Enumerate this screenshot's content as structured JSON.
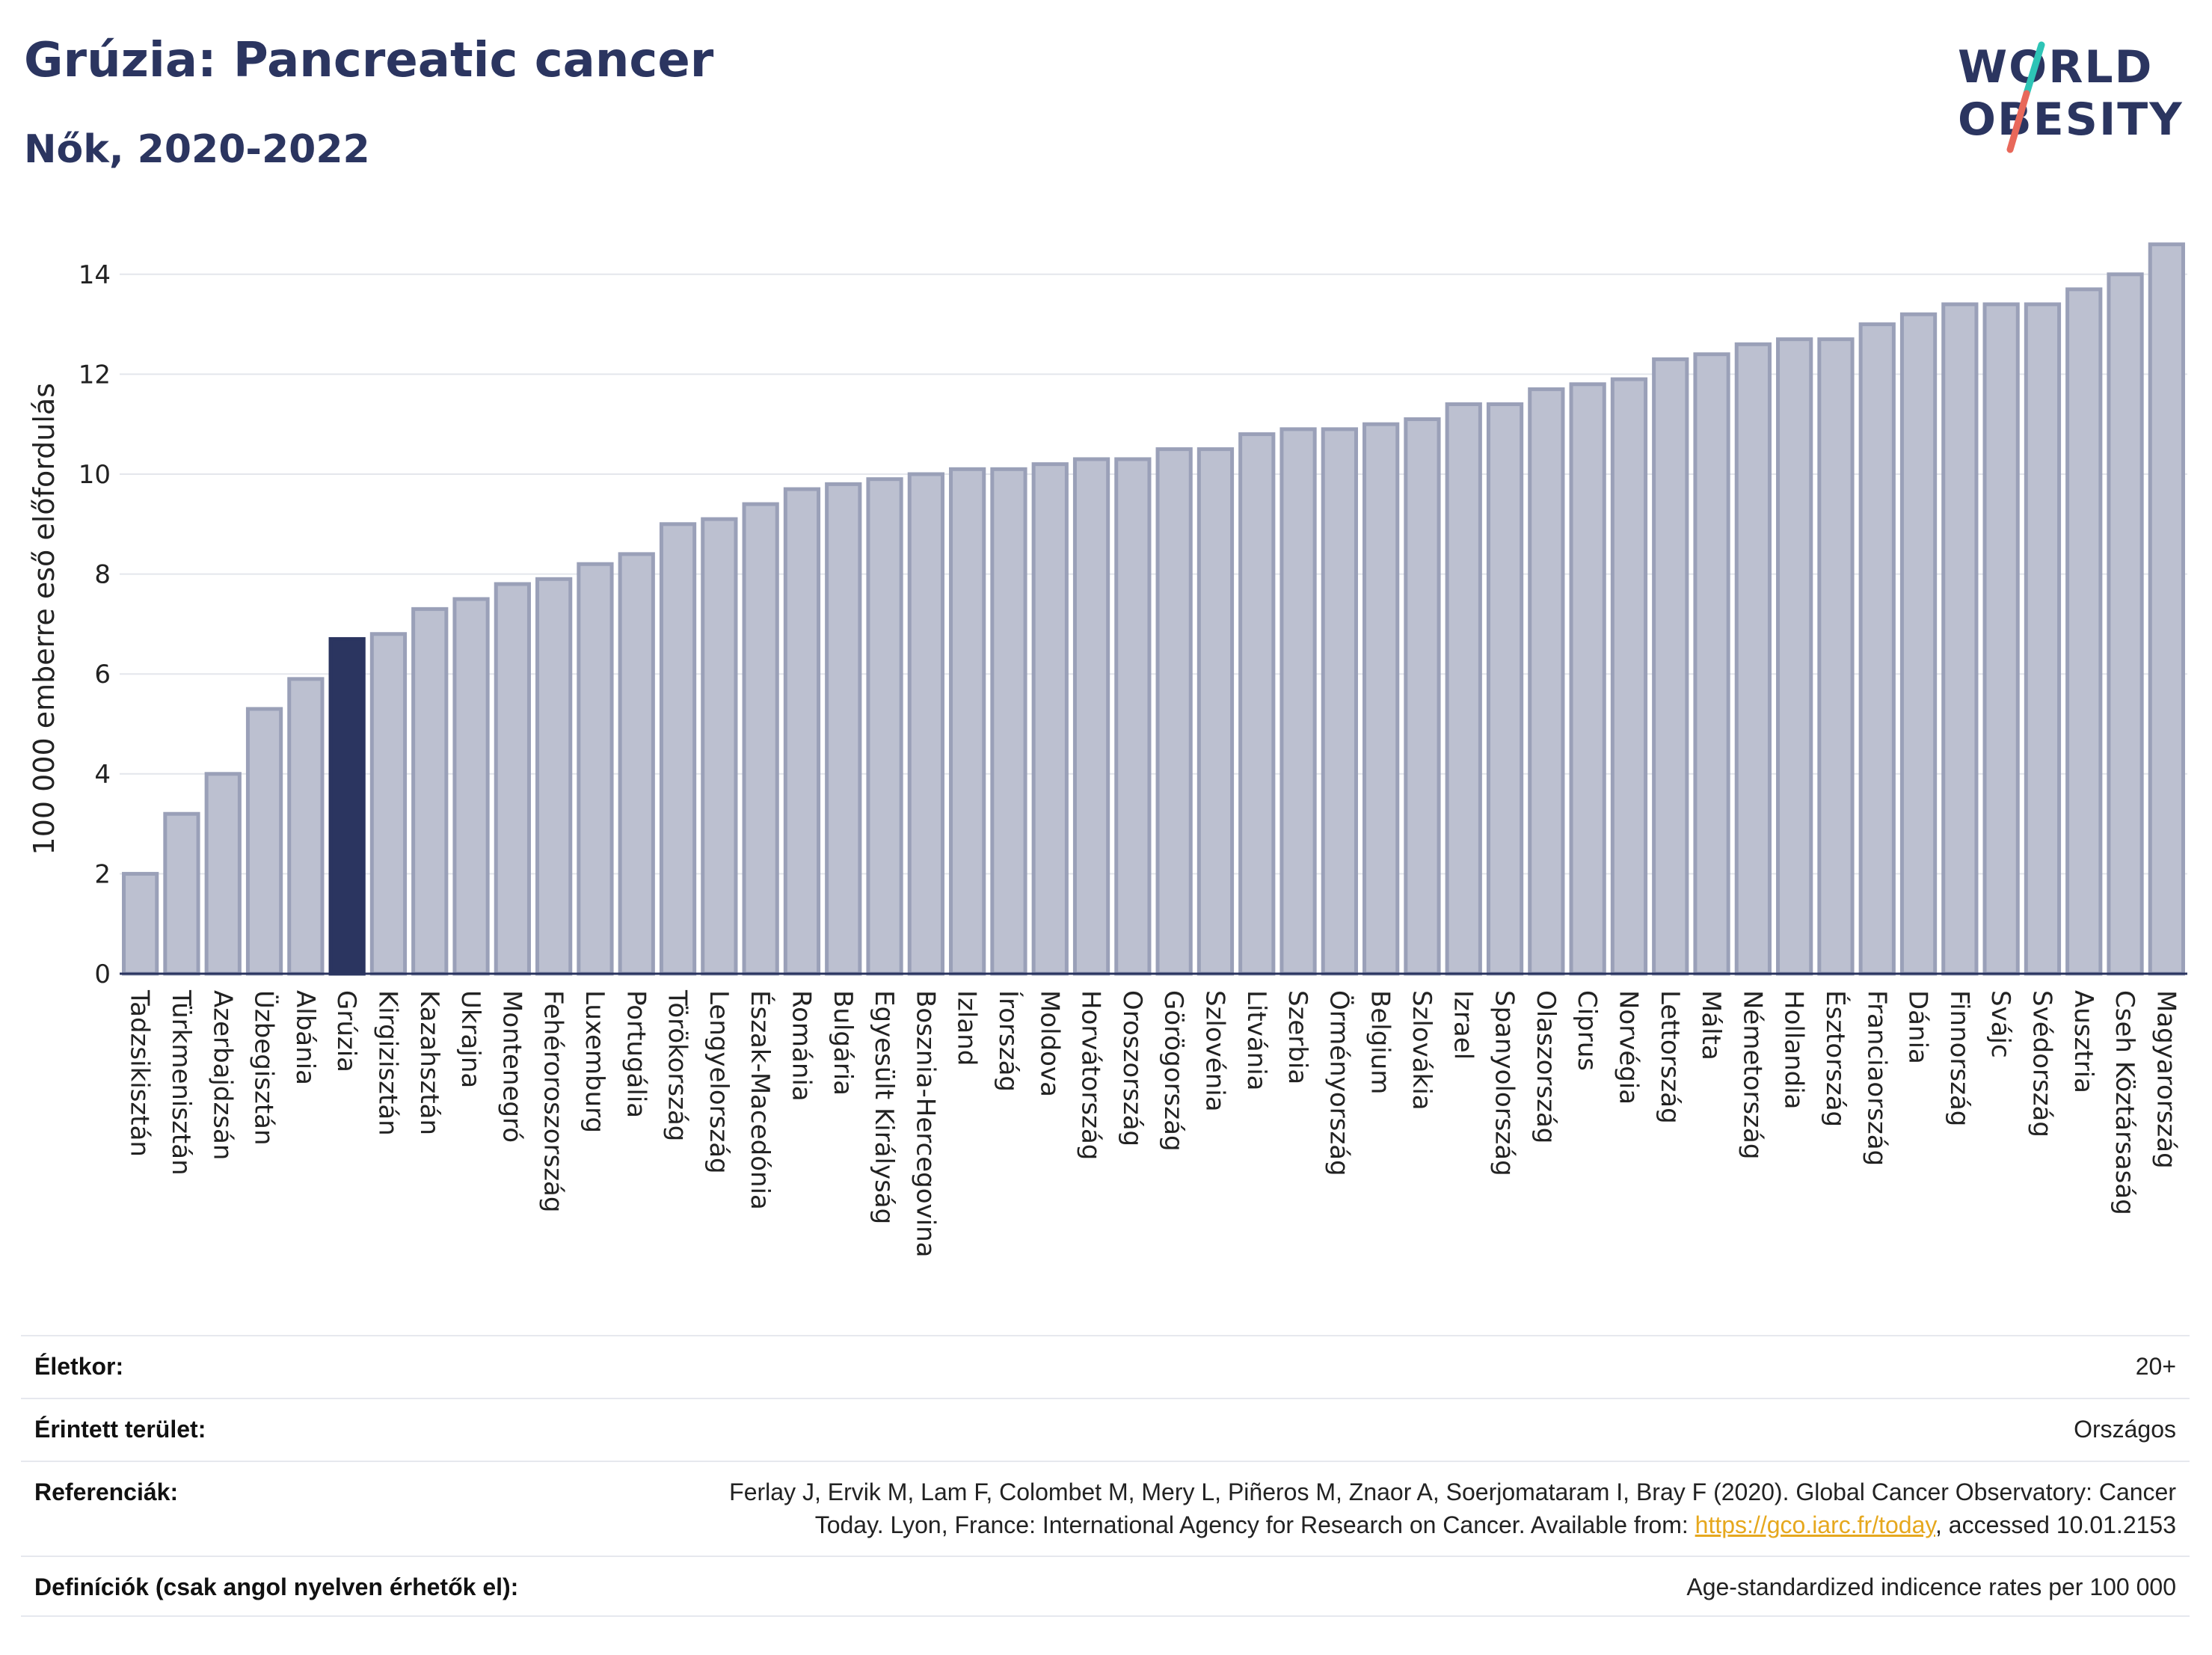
{
  "title": "Grúzia: Pancreatic cancer",
  "subtitle": "Nők, 2020-2022",
  "logo": {
    "line1": "WORLD",
    "line2": "OBESITY",
    "accent_teal": "#2ec4b6",
    "accent_red": "#e8685a"
  },
  "colors": {
    "bar": "#bcc0d0",
    "bar_border": "#9aa0b8",
    "highlight": "#2b3560",
    "grid": "#e4e6ec",
    "axis": "#2b3560"
  },
  "chart_data": {
    "type": "bar",
    "ylabel": "100 000 emberre eső előfordulás",
    "xlabel": "",
    "ylim": [
      0,
      15
    ],
    "yticks": [
      0,
      2,
      4,
      6,
      8,
      10,
      12,
      14
    ],
    "grid": true,
    "highlight": "Grúzia",
    "categories": [
      "Tadzsikisztán",
      "Türkmenisztán",
      "Azerbajdzsán",
      "Üzbegisztán",
      "Albánia",
      "Grúzia",
      "Kirgizisztán",
      "Kazahsztán",
      "Ukrajna",
      "Montenegró",
      "Fehéroroszország",
      "Luxemburg",
      "Portugália",
      "Törökország",
      "Lengyelország",
      "Észak-Macedónia",
      "Románia",
      "Bulgária",
      "Egyesült Királyság",
      "Bosznia-Hercegovina",
      "Izland",
      "Írország",
      "Moldova",
      "Horvátország",
      "Oroszország",
      "Görögország",
      "Szlovénia",
      "Litvánia",
      "Szerbia",
      "Örményország",
      "Belgium",
      "Szlovákia",
      "Izrael",
      "Spanyolország",
      "Olaszország",
      "Ciprus",
      "Norvégia",
      "Lettország",
      "Málta",
      "Németország",
      "Hollandia",
      "Észtország",
      "Franciaország",
      "Dánia",
      "Finnország",
      "Svájc",
      "Svédország",
      "Ausztria",
      "Cseh Köztársaság",
      "Magyarország"
    ],
    "values": [
      2.0,
      3.2,
      4.0,
      5.3,
      5.9,
      6.7,
      6.8,
      7.3,
      7.5,
      7.8,
      7.9,
      8.2,
      8.4,
      9.0,
      9.1,
      9.4,
      9.7,
      9.8,
      9.9,
      10.0,
      10.1,
      10.1,
      10.2,
      10.3,
      10.3,
      10.5,
      10.5,
      10.8,
      10.9,
      10.9,
      11.0,
      11.1,
      11.4,
      11.4,
      11.7,
      11.8,
      11.9,
      12.3,
      12.4,
      12.6,
      12.7,
      12.7,
      13.0,
      13.2,
      13.4,
      13.4,
      13.4,
      13.7,
      14.0,
      14.6
    ]
  },
  "info": {
    "age_label": "Életkor:",
    "age_value": "20+",
    "area_label": "Érintett terület:",
    "area_value": "Országos",
    "ref_label": "Referenciák:",
    "ref_line1": "Ferlay J, Ervik M, Lam F, Colombet M, Mery L, Piñeros M, Znaor A, Soerjomataram I, Bray F (2020). Global Cancer Observatory: Cancer",
    "ref_line2_pre": "Today. Lyon, France: International Agency for Research on Cancer. Available from: ",
    "ref_link": "https://gco.iarc.fr/today",
    "ref_line2_post": ", accessed 10.01.2153",
    "def_label": "Definíciók (csak angol nyelven érhetők el):",
    "def_value": "Age-standardized indicence rates per 100 000"
  }
}
